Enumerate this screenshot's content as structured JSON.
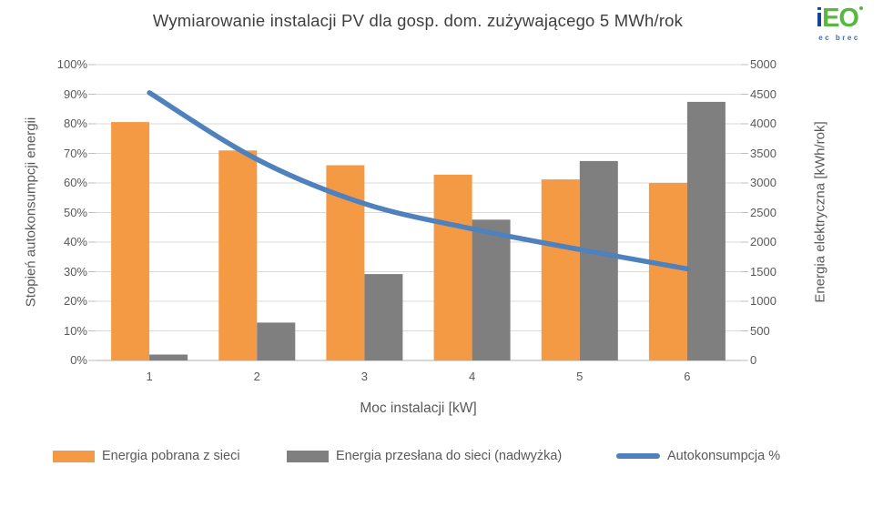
{
  "header": {
    "title": "Wymiarowanie instalacji PV dla gosp. dom. zużywającego 5 MWh/rok"
  },
  "logo": {
    "text_i": "i",
    "text_eo": "EO",
    "sub": "ec brec",
    "color_i": "#1C3E96",
    "color_eo": "#56B83F",
    "color_sub": "#3E6DB5"
  },
  "chart_data": {
    "type": "bar",
    "subtype": "combo-bar-line",
    "categories": [
      "1",
      "2",
      "3",
      "4",
      "5",
      "6"
    ],
    "xlabel": "Moc instalacji [kW]",
    "grid": "horizontal",
    "legend_position": "bottom",
    "left_axis": {
      "label": "Stopień autokonsumpcji energii",
      "min": 0,
      "max": 100,
      "ticks": [
        "0%",
        "10%",
        "20%",
        "30%",
        "40%",
        "50%",
        "60%",
        "70%",
        "80%",
        "90%",
        "100%"
      ]
    },
    "right_axis": {
      "label": "Energia elektryczna [kWh/rok]",
      "min": 0,
      "max": 5000,
      "ticks": [
        "0",
        "500",
        "1000",
        "1500",
        "2000",
        "2500",
        "3000",
        "3500",
        "4000",
        "4500",
        "5000"
      ]
    },
    "series": [
      {
        "name": "Energia pobrana z sieci",
        "slug": "grid-import-bar",
        "type": "bar",
        "axis": "right",
        "color": "#F49A45",
        "values": [
          4030,
          3550,
          3300,
          3140,
          3060,
          3000
        ]
      },
      {
        "name": "Energia przesłana do sieci (nadwyżka)",
        "slug": "grid-export-bar",
        "type": "bar",
        "axis": "right",
        "color": "#7F7F7F",
        "values": [
          100,
          640,
          1460,
          2380,
          3370,
          4370
        ]
      },
      {
        "name": "Autokonsumpcja %",
        "slug": "autoconsumption-line",
        "type": "line",
        "axis": "left",
        "color": "#4F81BD",
        "values": [
          90.5,
          68,
          53,
          44.5,
          37.5,
          31
        ]
      }
    ],
    "colors": {
      "gridline": "#D9D9D9",
      "axis_line": "#BFBFBF",
      "tick_text": "#595959",
      "title_text": "#3F3F3F"
    }
  }
}
